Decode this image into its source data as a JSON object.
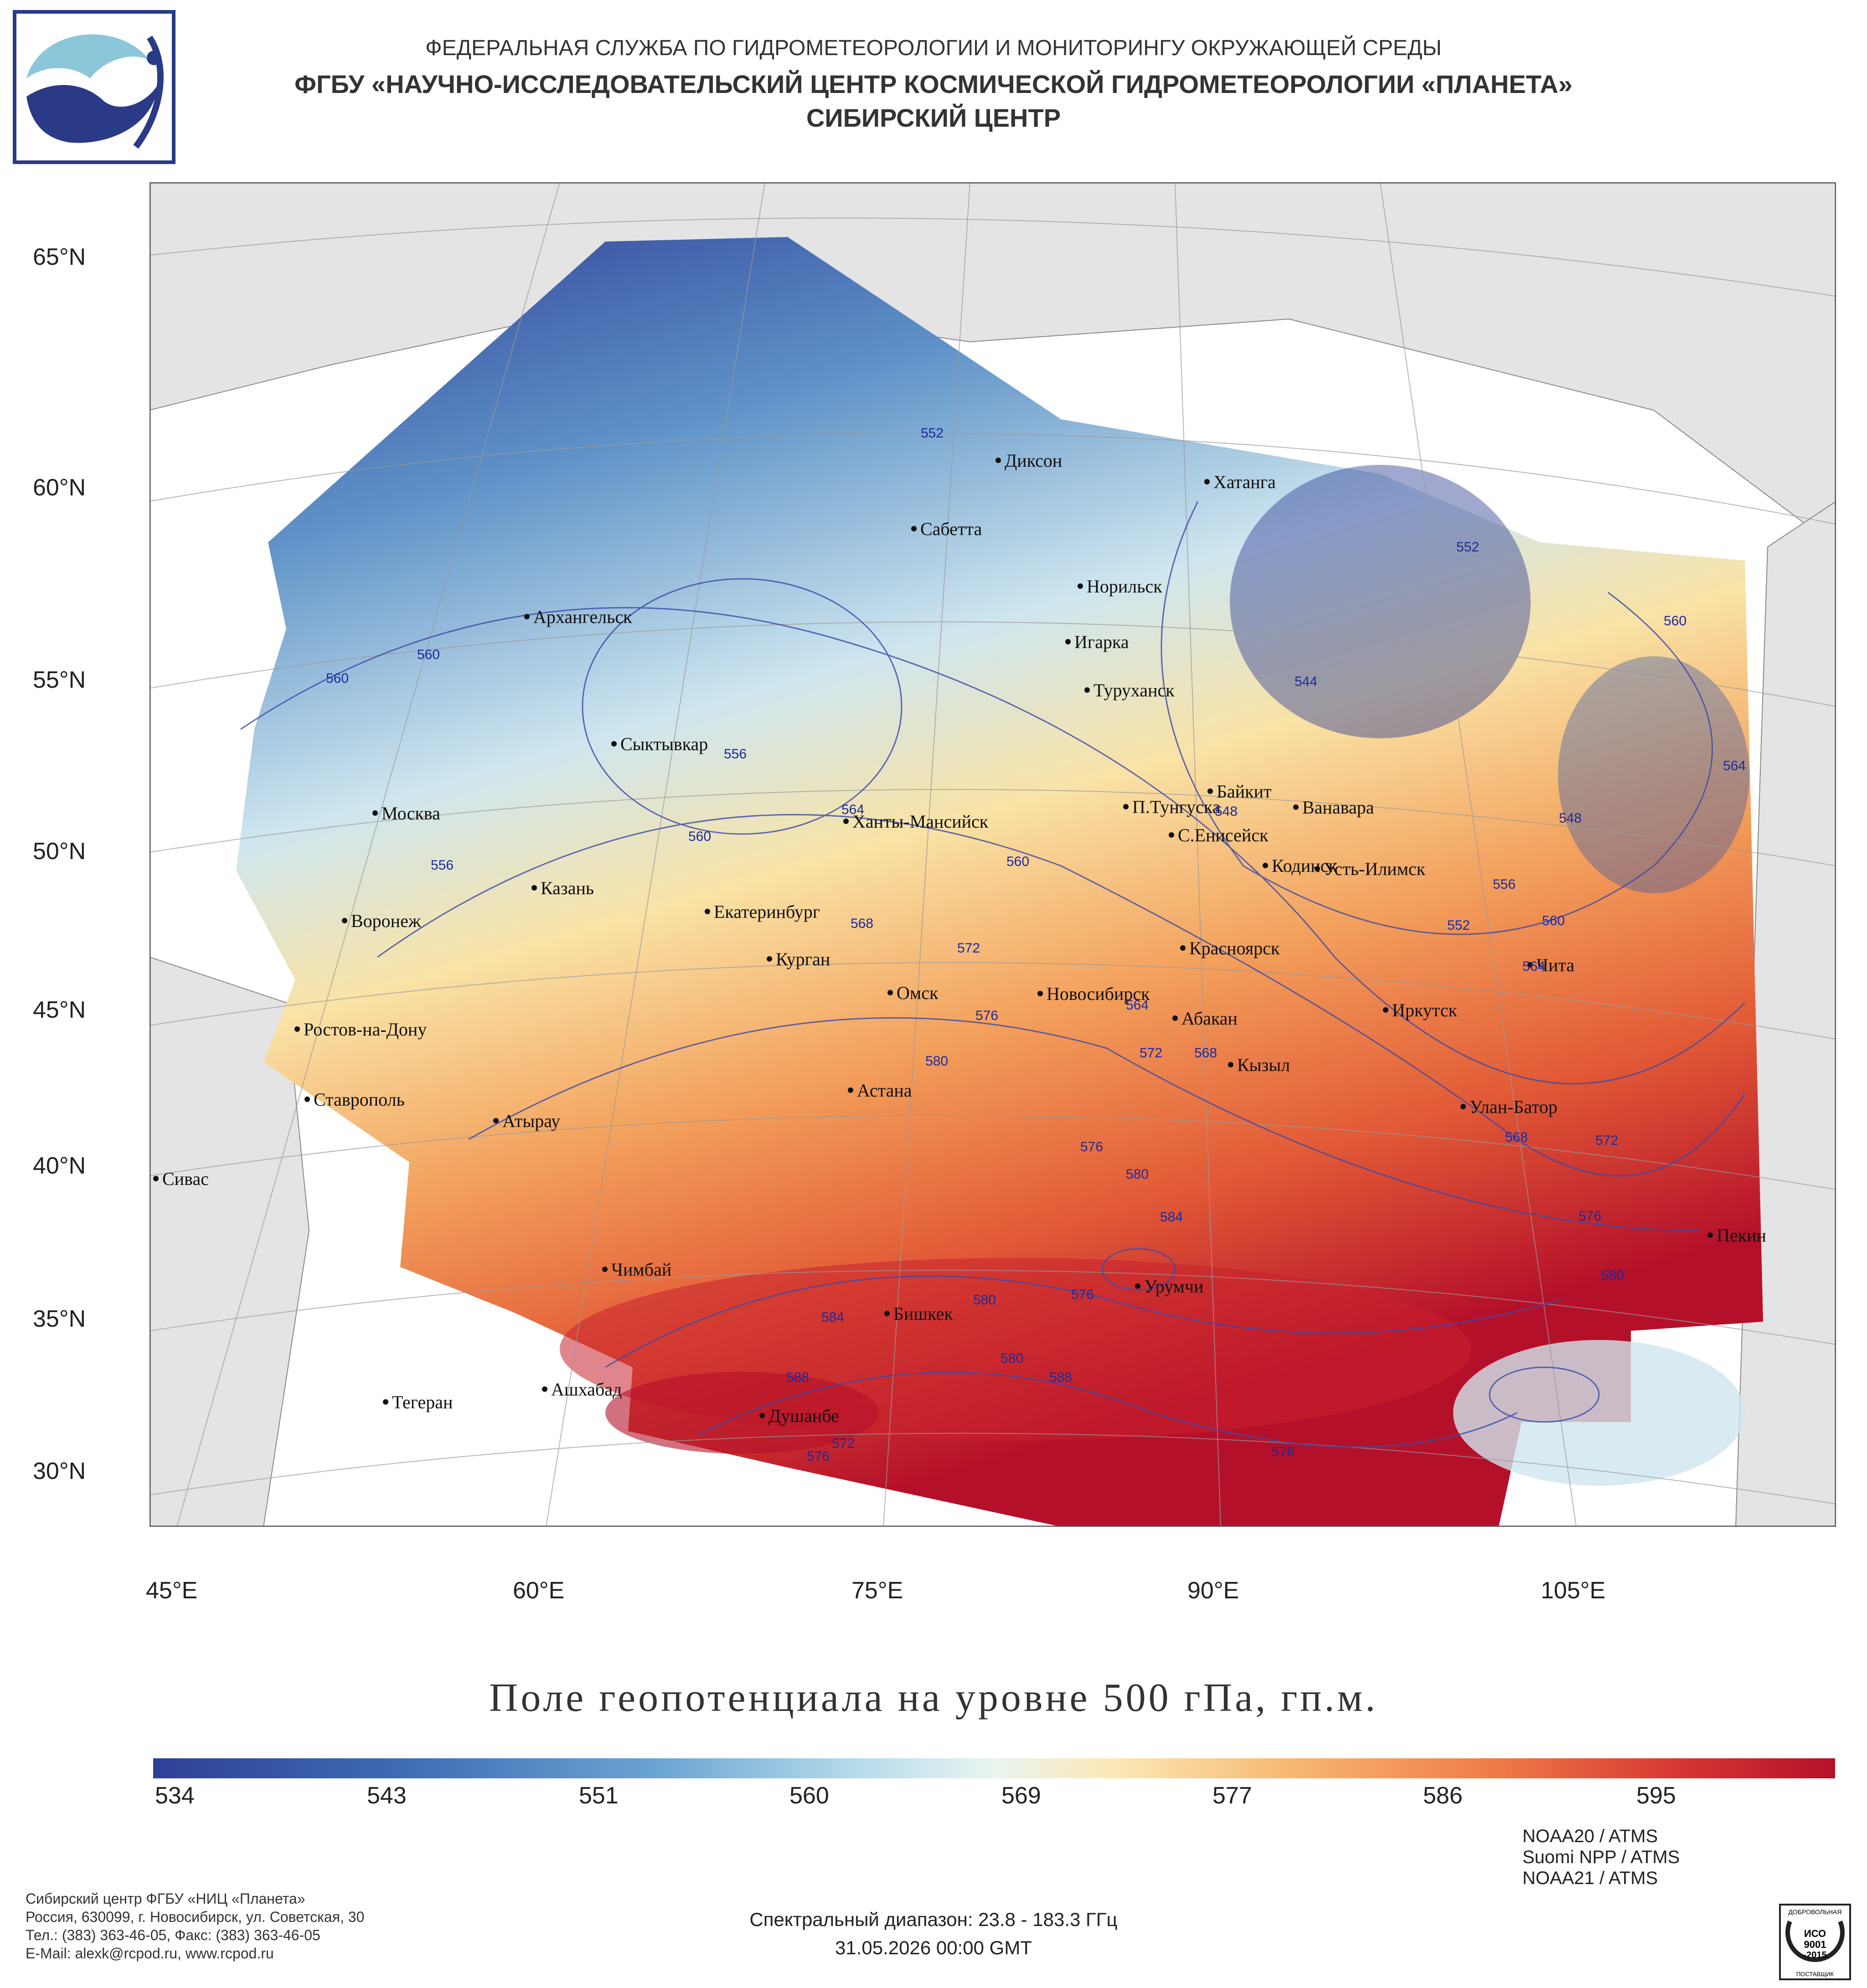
{
  "header": {
    "line1": "ФЕДЕРАЛЬНАЯ СЛУЖБА ПО ГИДРОМЕТЕОРОЛОГИИ И МОНИТОРИНГУ ОКРУЖАЮЩЕЙ СРЕДЫ",
    "line2": "ФГБУ «НАУЧНО-ИССЛЕДОВАТЕЛЬСКИЙ ЦЕНТР КОСМИЧЕСКОЙ ГИДРОМЕТЕОРОЛОГИИ «ПЛАНЕТА»",
    "line3": "СИБИРСКИЙ ЦЕНТР"
  },
  "map": {
    "lat_labels": [
      "65°N",
      "60°N",
      "55°N",
      "50°N",
      "45°N",
      "40°N",
      "35°N",
      "30°N"
    ],
    "lon_labels": [
      "45°E",
      "60°E",
      "75°E",
      "90°E",
      "105°E"
    ],
    "cities": [
      "Диксон",
      "Хатанга",
      "Сабетта",
      "Норильск",
      "Архангельск",
      "Игарка",
      "Туруханск",
      "Сыктывкар",
      "Байкит",
      "Москва",
      "П.Тунгуска",
      "Ванавара",
      "Ханты-Мансийск",
      "С.Енисейск",
      "Кодинск",
      "Усть-Илимск",
      "Казань",
      "Екатеринбург",
      "Воронеж",
      "Красноярск",
      "Курган",
      "Чита",
      "Омск",
      "Новосибирск",
      "Иркутск",
      "Ростов-на-Дону",
      "Абакан",
      "Кызыл",
      "Астана",
      "Ставрополь",
      "Улан-Батор",
      "Атырау",
      "Сивас",
      "Пекин",
      "Чимбай",
      "Урумчи",
      "Бишкек",
      "Тегеран",
      "Ашхабад",
      "Душанбе"
    ],
    "contour_labels": [
      "552",
      "560",
      "560",
      "556",
      "556",
      "560",
      "564",
      "560",
      "568",
      "572",
      "576",
      "580",
      "564",
      "572",
      "568",
      "576",
      "580",
      "584",
      "580",
      "576",
      "588",
      "584",
      "580",
      "572",
      "576",
      "588",
      "576",
      "552",
      "544",
      "548",
      "548",
      "556",
      "552",
      "564",
      "560",
      "564",
      "568",
      "572",
      "576",
      "580",
      "560"
    ]
  },
  "map_title": "Поле геопотенциала на уровне 500 гПа, гп.м.",
  "colorbar": {
    "labels": [
      "534",
      "543",
      "551",
      "560",
      "569",
      "577",
      "586",
      "595"
    ]
  },
  "footer": {
    "org_lines": [
      "Сибирский центр ФГБУ «НИЦ «Планета»",
      "Россия, 630099, г. Новосибирск, ул. Советская, 30",
      "Тел.: (383) 363-46-05, Факс: (383) 363-46-05",
      "E-Mail: alexk@rcpod.ru, www.rcpod.ru"
    ],
    "spectral": "Спектральный диапазон: 23.8 - 183.3 ГГц",
    "datetime": "31.05.2026 00:00 GMT",
    "satellites": [
      "NOAA20 / ATMS",
      "Suomi NPP / ATMS",
      "NOAA21 / ATMS"
    ],
    "iso_badge": [
      "ДОБРОВОЛЬНАЯ",
      "ИСО",
      "9001",
      "-2015",
      "ПОСТАВЩИК"
    ]
  },
  "colors": {
    "field_low": "#2f3f97",
    "field_mid": "#f7f4e0",
    "field_high": "#b5102a",
    "land_outside": "#e4e4e4",
    "contour": "#3b4aa8"
  }
}
